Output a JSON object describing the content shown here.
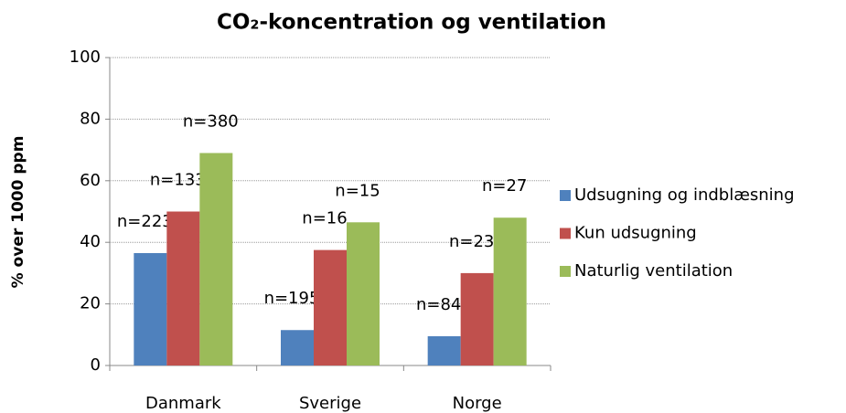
{
  "chart_data": {
    "type": "bar",
    "title": "CO₂-koncentration og ventilation",
    "ylabel": "% over 1000 ppm",
    "categories": [
      "Danmark",
      "Sverige",
      "Norge"
    ],
    "series": [
      {
        "name": "Udsugning og indblæsning",
        "color": "#4f81bd",
        "values": [
          36.5,
          11.5,
          9.5
        ],
        "annotations": [
          "n=223",
          "n=195",
          "n=84"
        ]
      },
      {
        "name": "Kun udsugning",
        "color": "#c0504d",
        "values": [
          50,
          37.5,
          30
        ],
        "annotations": [
          "n=133",
          "n=16",
          "n=23"
        ]
      },
      {
        "name": "Naturlig ventilation",
        "color": "#9bbb59",
        "values": [
          69,
          46.5,
          48
        ],
        "annotations": [
          "n=380",
          "n=15",
          "n=27"
        ]
      }
    ],
    "ylim": [
      0,
      100
    ],
    "yticks": [
      0,
      20,
      40,
      60,
      80,
      100
    ],
    "grid": true,
    "legend": "right"
  }
}
